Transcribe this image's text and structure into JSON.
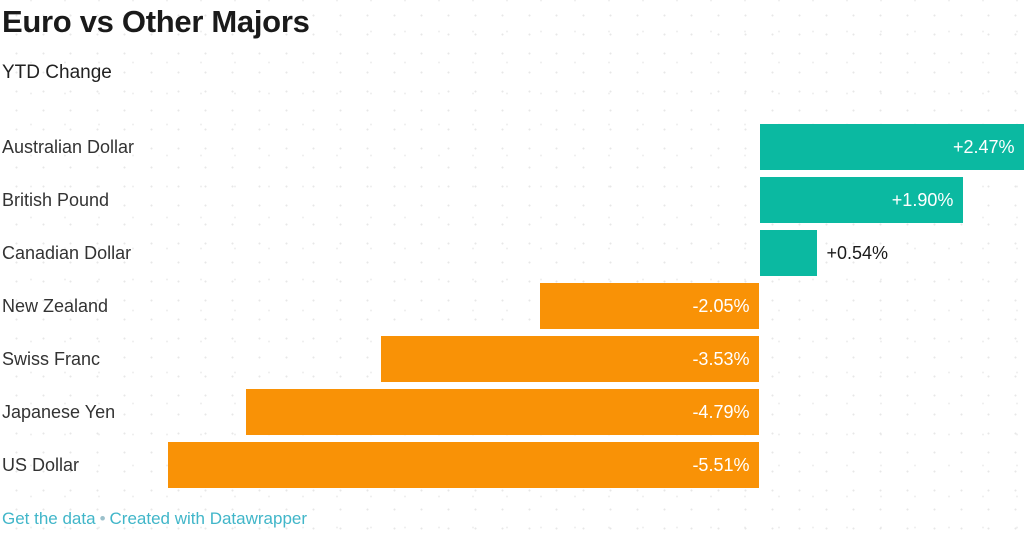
{
  "header": {
    "title": "Euro vs Other Majors",
    "subtitle": "YTD Change"
  },
  "chart_data": {
    "type": "bar",
    "orientation": "horizontal",
    "title": "Euro vs Other Majors",
    "subtitle": "YTD Change",
    "xlabel": "",
    "ylabel": "",
    "grid": false,
    "legend": false,
    "xlim": [
      -5.51,
      2.47
    ],
    "categories": [
      "Australian Dollar",
      "British Pound",
      "Canadian Dollar",
      "New Zealand",
      "Swiss Franc",
      "Japanese Yen",
      "US Dollar"
    ],
    "values": [
      2.47,
      1.9,
      0.54,
      -2.05,
      -3.53,
      -4.79,
      -5.51
    ],
    "value_labels": [
      "+2.47%",
      "+1.90%",
      "+0.54%",
      "-2.05%",
      "-3.53%",
      "-4.79%",
      "-5.51%"
    ],
    "colors": {
      "positive": "#0bb9a1",
      "negative": "#f99206",
      "value_label_inside": "#ffffff",
      "value_label_outside": "#1a1a1a",
      "category_label": "#333333"
    }
  },
  "footer": {
    "get_data_label": "Get the data",
    "separator": "•",
    "created_with_label": "Created with Datawrapper",
    "link_color": "#41b6c9",
    "separator_color": "#9bc0cb"
  }
}
